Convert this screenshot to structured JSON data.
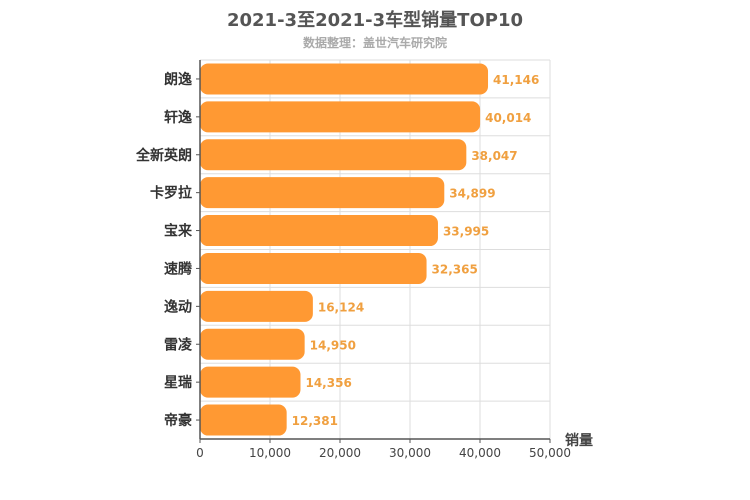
{
  "chart_data": {
    "type": "bar",
    "orientation": "horizontal",
    "title": "2021-3至2021-3车型销量TOP10",
    "subtitle": "数据整理：盖世汽车研究院",
    "xlabel": "销量",
    "ylabel": "",
    "categories": [
      "朗逸",
      "轩逸",
      "全新英朗",
      "卡罗拉",
      "宝来",
      "速腾",
      "逸动",
      "雷凌",
      "星瑞",
      "帝豪"
    ],
    "values": [
      41146,
      40014,
      38047,
      34899,
      33995,
      32365,
      16124,
      14950,
      14356,
      12381
    ],
    "value_labels": [
      "41,146",
      "40,014",
      "38,047",
      "34,899",
      "33,995",
      "32,365",
      "16,124",
      "14,950",
      "14,356",
      "12,381"
    ],
    "xlim": [
      0,
      50000
    ],
    "xticks": [
      "0",
      "10,000",
      "20,000",
      "30,000",
      "40,000",
      "50,000"
    ],
    "grid": true,
    "bar_color": "#ff9933",
    "label_color": "#f0a040",
    "grid_color": "#dddddd",
    "axis_color": "#555555"
  }
}
